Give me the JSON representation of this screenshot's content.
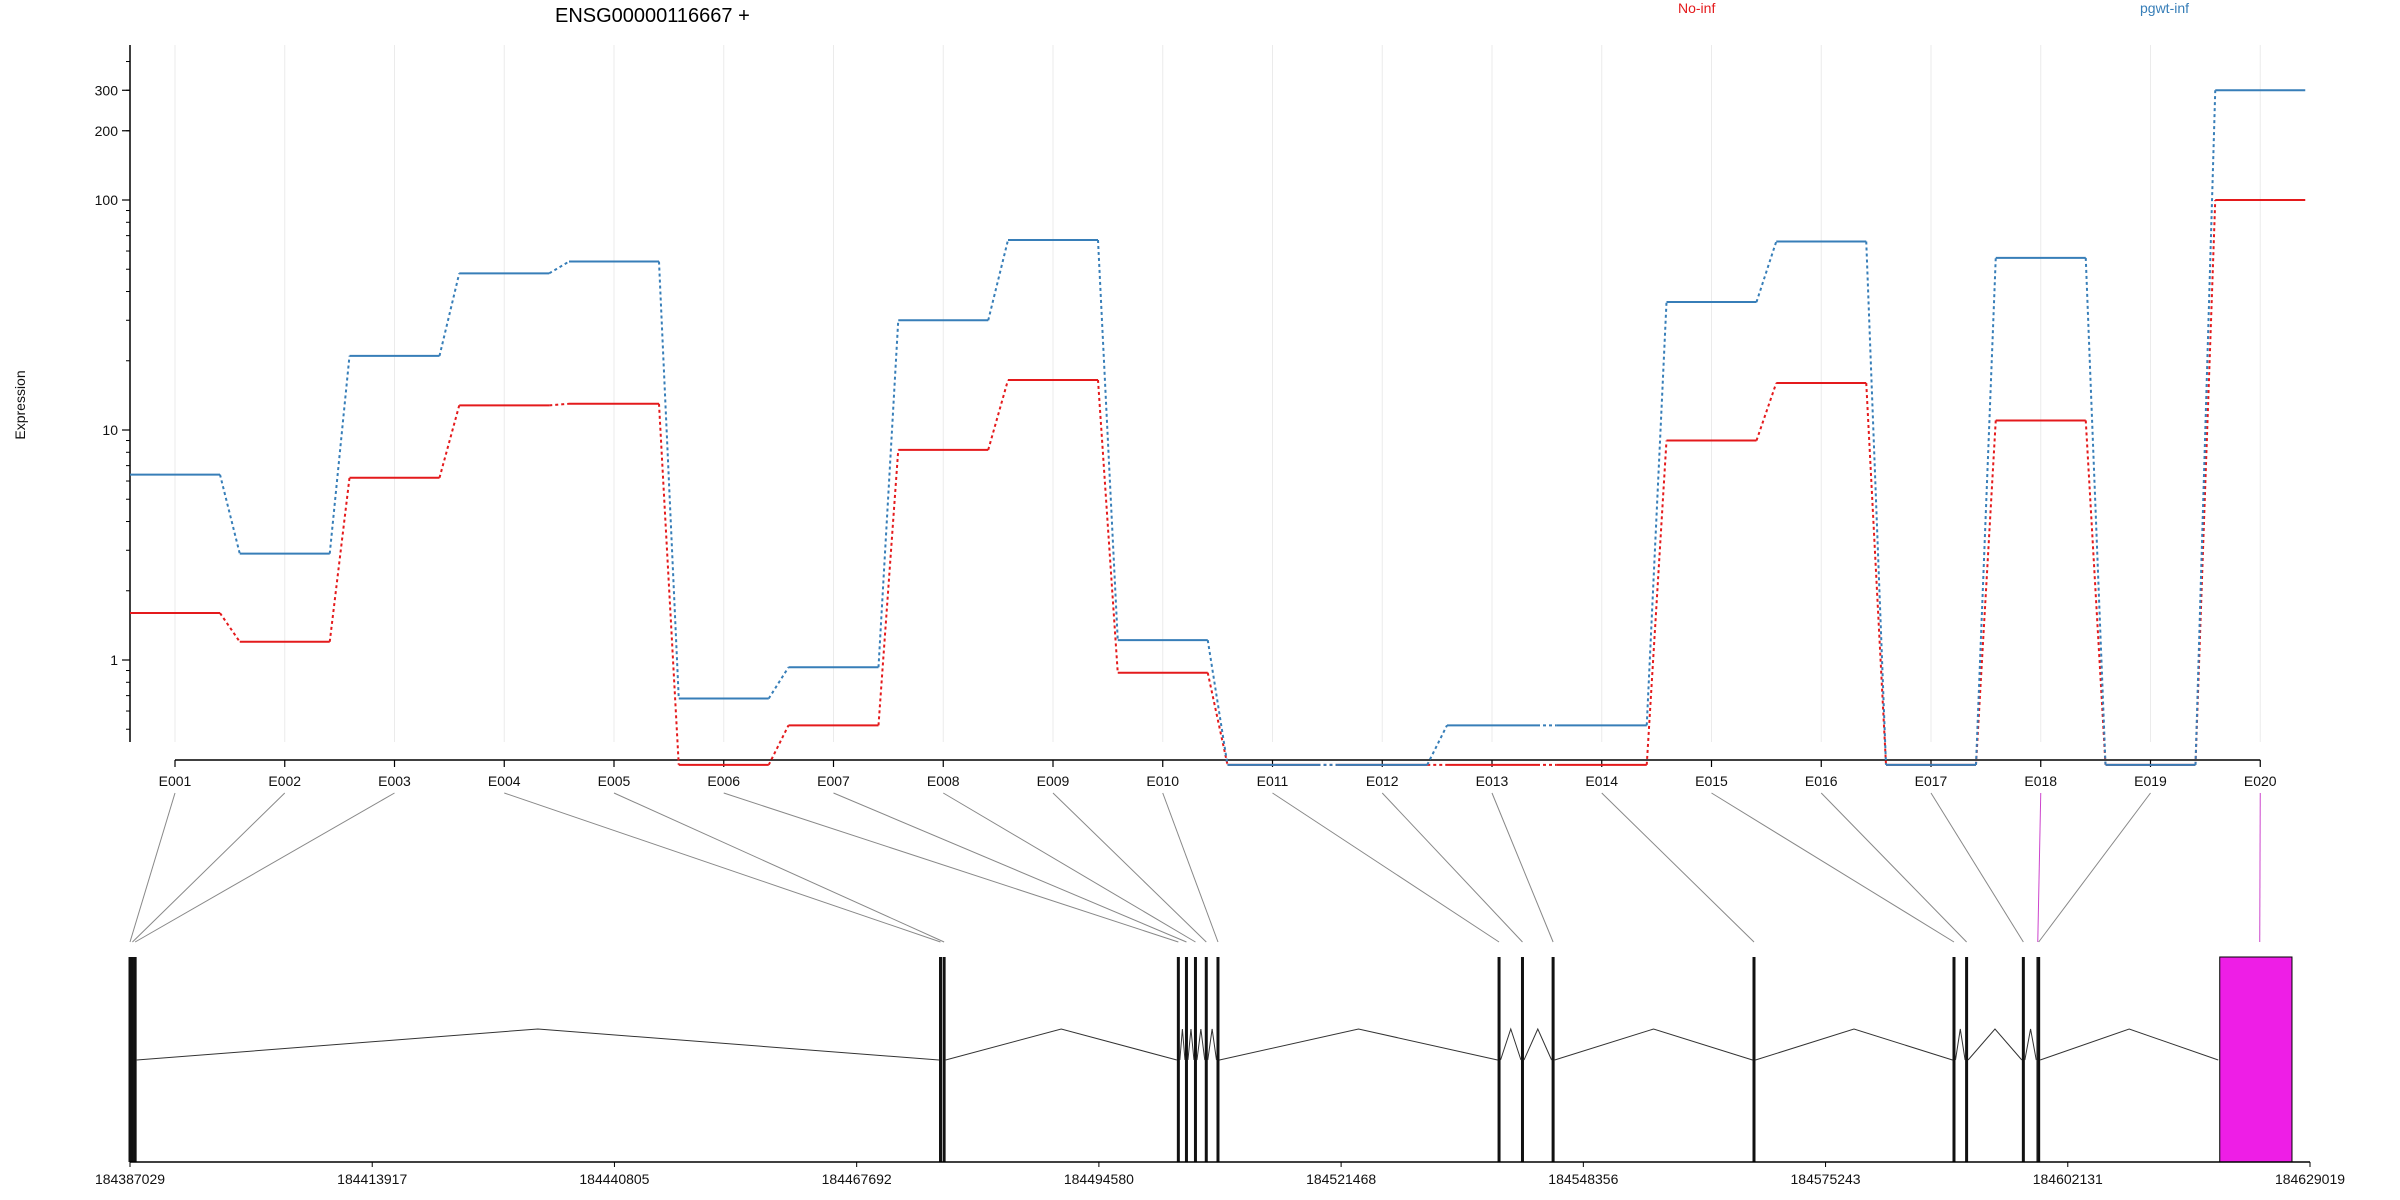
{
  "chart_data": {
    "type": "line",
    "title": "ENSG00000116667 +",
    "ylabel": "Expression",
    "xlabel": "",
    "y_scale": "log",
    "ylim": [
      0.33,
      420
    ],
    "y_ticks": [
      1,
      10,
      100,
      200,
      300
    ],
    "grid": "vertical lines at exons, very light",
    "legend_placement": "top",
    "categories": [
      "E001",
      "E002",
      "E003",
      "E004",
      "E005",
      "E006",
      "E007",
      "E008",
      "E009",
      "E010",
      "E011",
      "E012",
      "E013",
      "E014",
      "E015",
      "E016",
      "E017",
      "E018",
      "E019",
      "E020"
    ],
    "series": [
      {
        "name": "No-inf",
        "color": "#e41a1c",
        "values": [
          1.6,
          1.2,
          6.2,
          12.8,
          13.0,
          0.35,
          0.52,
          8.2,
          16.5,
          0.88,
          0.35,
          0.35,
          0.35,
          0.35,
          9.0,
          16.0,
          0.35,
          11.0,
          0.35,
          100
        ]
      },
      {
        "name": "pgwt-inf",
        "color": "#377eb8",
        "values": [
          6.4,
          2.9,
          21.0,
          48.0,
          54.0,
          0.68,
          0.93,
          30.0,
          67.0,
          1.22,
          0.35,
          0.35,
          0.52,
          0.52,
          36.0,
          66.0,
          0.35,
          56.0,
          0.35,
          300
        ]
      }
    ],
    "highlighted_exons": [
      "E018",
      "E020"
    ],
    "highlight_color": "#ee1ee6",
    "gene_model": {
      "coordinate_labels": [
        "184387029",
        "184413917",
        "184440805",
        "184467692",
        "184494580",
        "184521468",
        "184548356",
        "184575243",
        "184602131",
        "184629019"
      ],
      "coordinate_range": [
        184387029,
        184629019
      ],
      "exon_starts": [
        184387029,
        184387300,
        184387600,
        184477000,
        184477400,
        184503400,
        184504300,
        184505300,
        184506500,
        184507800,
        184539000,
        184541600,
        184545000,
        184567300,
        184589500,
        184590900,
        184597200,
        184598800,
        184598900,
        184619000
      ]
    }
  }
}
